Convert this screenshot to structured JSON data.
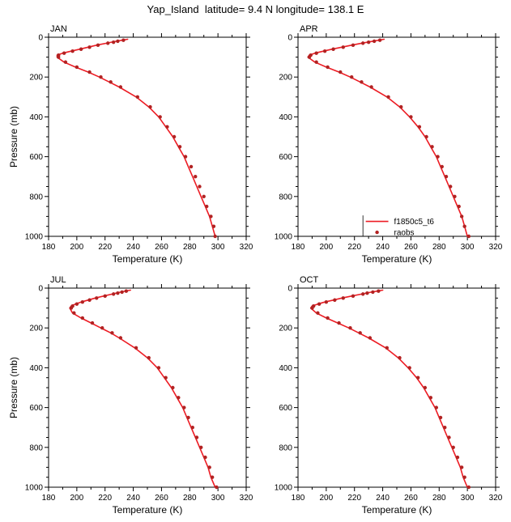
{
  "page": {
    "title": "Yap_Island  latitude= 9.4 N longitude= 138.1 E"
  },
  "chart_data": {
    "type": "line",
    "title": "Yap_Island  latitude= 9.4 N longitude= 138.1 E",
    "xlabel": "Temperature (K)",
    "ylabel": "Pressure (mb)",
    "xlim": [
      180,
      320
    ],
    "ylim": [
      0,
      1000
    ],
    "y_inverted": true,
    "x_major_ticks": [
      180,
      200,
      220,
      240,
      260,
      280,
      300,
      320
    ],
    "x_minor_step": 10,
    "y_major_ticks": [
      0,
      200,
      400,
      600,
      800,
      1000
    ],
    "y_minor_step": 50,
    "grid": false,
    "colors": {
      "model_line": "#ed1c24",
      "obs_marker": "#b22222",
      "axis": "#000000"
    },
    "legend": {
      "panel": "APR",
      "entries": [
        {
          "label": "f1850c5_t6",
          "type": "line"
        },
        {
          "label": "raobs",
          "type": "marker"
        }
      ],
      "x_sample_start": 228,
      "x_sample_end": 244,
      "x_marker": 236,
      "x_text": 248,
      "row1_pressure": 925,
      "row2_pressure": 980,
      "border_x": 226,
      "border_p0": 895,
      "border_p1": 1000
    },
    "panels": [
      {
        "label": "JAN",
        "series": [
          {
            "name": "f1850c5_t6",
            "type": "line",
            "pressure": [
              10,
              20,
              30,
              40,
              50,
              60,
              70,
              80,
              90,
              100,
              125,
              150,
              175,
              200,
              225,
              250,
              300,
              350,
              400,
              450,
              500,
              550,
              600,
              650,
              700,
              750,
              800,
              850,
              900,
              950,
              1000
            ],
            "temp": [
              236,
              228,
              221,
              214,
              208,
              202,
              196,
              190,
              186,
              186,
              191,
              199,
              208,
              216,
              223,
              230,
              242,
              251,
              258,
              263,
              268,
              272,
              276,
              279,
              282,
              285,
              288,
              291,
              294,
              296,
              298
            ]
          },
          {
            "name": "raobs",
            "type": "scatter",
            "pressure": [
              15,
              20,
              25,
              30,
              40,
              50,
              60,
              70,
              80,
              90,
              100,
              125,
              150,
              175,
              200,
              225,
              250,
              300,
              350,
              400,
              450,
              500,
              550,
              600,
              650,
              700,
              750,
              800,
              850,
              900,
              950,
              1000
            ],
            "temp": [
              233,
              229,
              226,
              222,
              215,
              209,
              203,
              197,
              191,
              187,
              187,
              192,
              200,
              209,
              217,
              224,
              231,
              243,
              252,
              259,
              264,
              269,
              273,
              277,
              281,
              284,
              287,
              290,
              292,
              295,
              297,
              298
            ]
          }
        ]
      },
      {
        "label": "APR",
        "series": [
          {
            "name": "f1850c5_t6",
            "type": "line",
            "pressure": [
              10,
              20,
              30,
              40,
              50,
              60,
              70,
              80,
              90,
              100,
              125,
              150,
              175,
              200,
              225,
              250,
              300,
              350,
              400,
              450,
              500,
              550,
              600,
              650,
              700,
              750,
              800,
              850,
              900,
              950,
              1000
            ],
            "temp": [
              241,
              233,
              225,
              218,
              211,
              204,
              198,
              192,
              188,
              187,
              192,
              200,
              209,
              217,
              224,
              231,
              243,
              252,
              259,
              265,
              270,
              274,
              278,
              281,
              284,
              287,
              290,
              293,
              296,
              298,
              300
            ]
          },
          {
            "name": "raobs",
            "type": "scatter",
            "pressure": [
              15,
              20,
              25,
              30,
              40,
              50,
              60,
              70,
              80,
              90,
              100,
              125,
              150,
              175,
              200,
              225,
              250,
              300,
              350,
              400,
              450,
              500,
              550,
              600,
              650,
              700,
              750,
              800,
              850,
              900,
              950,
              1000
            ],
            "temp": [
              238,
              234,
              230,
              226,
              219,
              212,
              205,
              199,
              193,
              189,
              188,
              193,
              201,
              210,
              218,
              225,
              232,
              244,
              253,
              260,
              266,
              271,
              275,
              279,
              282,
              285,
              288,
              291,
              294,
              296,
              298,
              301
            ]
          }
        ]
      },
      {
        "label": "JUL",
        "series": [
          {
            "name": "f1850c5_t6",
            "type": "line",
            "pressure": [
              10,
              20,
              30,
              40,
              50,
              60,
              70,
              80,
              90,
              100,
              125,
              150,
              175,
              200,
              225,
              250,
              300,
              350,
              400,
              450,
              500,
              550,
              600,
              650,
              700,
              750,
              800,
              850,
              900,
              950,
              1000
            ],
            "temp": [
              238,
              231,
              225,
              219,
              213,
              208,
              203,
              199,
              196,
              195,
              197,
              203,
              210,
              217,
              224,
              230,
              241,
              250,
              257,
              262,
              267,
              271,
              275,
              278,
              281,
              284,
              287,
              290,
              293,
              295,
              298
            ]
          },
          {
            "name": "raobs",
            "type": "scatter",
            "pressure": [
              15,
              20,
              25,
              30,
              40,
              50,
              60,
              70,
              80,
              90,
              100,
              125,
              150,
              175,
              200,
              225,
              250,
              300,
              350,
              400,
              450,
              500,
              550,
              600,
              650,
              700,
              750,
              800,
              850,
              900,
              950,
              1000
            ],
            "temp": [
              235,
              232,
              229,
              226,
              220,
              214,
              209,
              204,
              200,
              197,
              196,
              198,
              204,
              211,
              218,
              225,
              231,
              242,
              251,
              258,
              263,
              268,
              272,
              276,
              279,
              282,
              285,
              288,
              291,
              294,
              296,
              299
            ]
          }
        ]
      },
      {
        "label": "OCT",
        "series": [
          {
            "name": "f1850c5_t6",
            "type": "line",
            "pressure": [
              10,
              20,
              30,
              40,
              50,
              60,
              70,
              80,
              90,
              100,
              125,
              150,
              175,
              200,
              225,
              250,
              300,
              350,
              400,
              450,
              500,
              550,
              600,
              650,
              700,
              750,
              800,
              850,
              900,
              950,
              1000
            ],
            "temp": [
              240,
              232,
              225,
              218,
              211,
              205,
              199,
              194,
              190,
              189,
              193,
              200,
              208,
              216,
              223,
              230,
              242,
              251,
              258,
              264,
              269,
              273,
              277,
              280,
              283,
              286,
              289,
              292,
              295,
              297,
              300
            ]
          },
          {
            "name": "raobs",
            "type": "scatter",
            "pressure": [
              15,
              20,
              25,
              30,
              40,
              50,
              60,
              70,
              80,
              90,
              100,
              125,
              150,
              175,
              200,
              225,
              250,
              300,
              350,
              400,
              450,
              500,
              550,
              600,
              650,
              700,
              750,
              800,
              850,
              900,
              950,
              1000
            ],
            "temp": [
              237,
              233,
              229,
              226,
              219,
              212,
              206,
              200,
              195,
              191,
              190,
              194,
              201,
              209,
              217,
              224,
              231,
              243,
              252,
              259,
              265,
              270,
              274,
              278,
              281,
              284,
              287,
              290,
              293,
              296,
              298,
              301
            ]
          }
        ]
      }
    ]
  }
}
